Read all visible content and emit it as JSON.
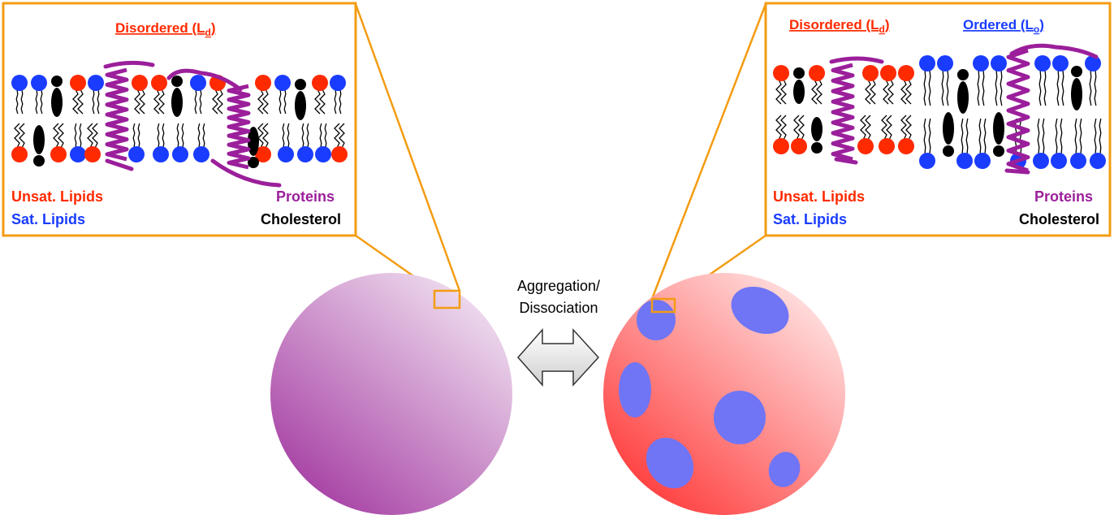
{
  "left_panel": {
    "title": "Disordered (L",
    "title_sub": "d",
    "title_close": ")",
    "legend": {
      "unsat": "Unsat. Lipids",
      "sat": "Sat. Lipids",
      "proteins": "Proteins",
      "cholesterol": "Cholesterol"
    }
  },
  "right_panel": {
    "title_disordered": "Disordered (L",
    "title_disordered_sub": "d",
    "title_disordered_close": ")",
    "title_ordered": "Ordered (L",
    "title_ordered_sub": "o",
    "title_ordered_close": ")",
    "legend": {
      "unsat": "Unsat. Lipids",
      "sat": "Sat. Lipids",
      "proteins": "Proteins",
      "cholesterol": "Cholesterol"
    }
  },
  "arrow": {
    "line1": "Aggregation/",
    "line2": "Dissociation"
  },
  "colors": {
    "frame": "#f39c12",
    "unsat": "#ff2a00",
    "sat": "#1a3cff",
    "protein": "#9b1f9b",
    "cholesterol": "#000000",
    "raft": "#6f75f5",
    "vesicle_disordered": "#a640a6",
    "vesicle_phase": "#ff3b3b"
  },
  "icons": {
    "arrow": "double-headed-arrow-icon"
  }
}
